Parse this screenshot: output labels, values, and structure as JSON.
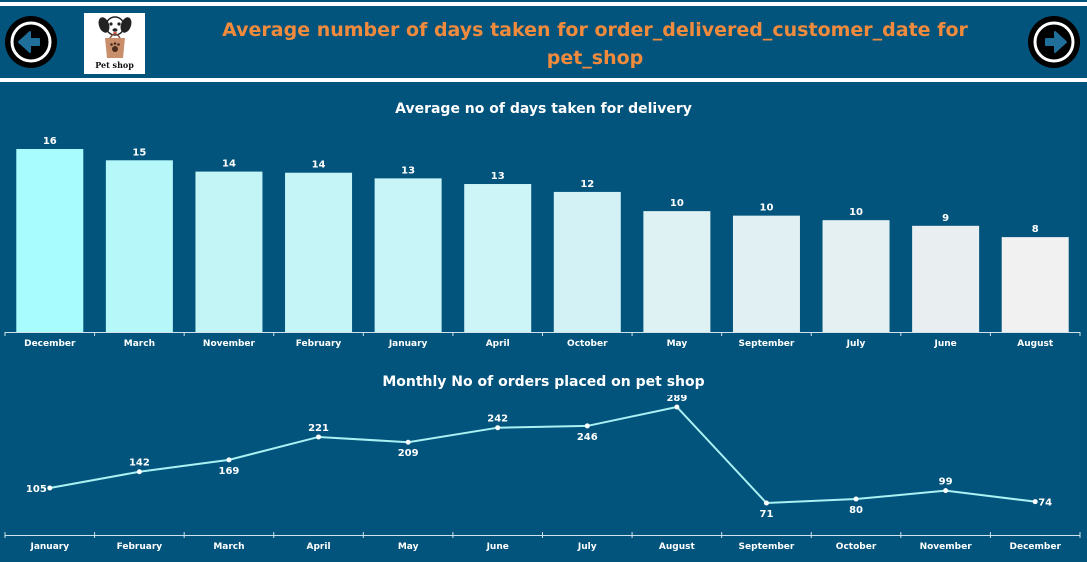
{
  "header": {
    "title": "Average number of days taken for order_delivered_customer_date for pet_shop",
    "logo_label": "Pet shop",
    "back_icon": "arrow-left-icon",
    "forward_icon": "arrow-right-icon"
  },
  "colors": {
    "background": "#03547c",
    "title": "#f08a3c",
    "line": "#a9f1f3"
  },
  "chart_data": [
    {
      "type": "bar",
      "title": "Average no of days taken for delivery",
      "categories": [
        "December",
        "March",
        "November",
        "February",
        "January",
        "April",
        "October",
        "May",
        "September",
        "July",
        "June",
        "August"
      ],
      "values": [
        16,
        15,
        14,
        14,
        13,
        13,
        12,
        10,
        10,
        10,
        9,
        8
      ],
      "plot_values": [
        16.2,
        15.2,
        14.2,
        14.1,
        13.6,
        13.1,
        12.4,
        10.7,
        10.3,
        9.9,
        9.4,
        8.4
      ],
      "colors": [
        "#a8fcfd",
        "#b6f8f9",
        "#c3f5f7",
        "#c5f5f7",
        "#c8f5f7",
        "#cdf4f6",
        "#d2f2f5",
        "#def1f3",
        "#e1f1f3",
        "#e4f0f2",
        "#e9eef1",
        "#f1f1f1"
      ],
      "xlabel": "",
      "ylabel": "",
      "ylim": [
        0,
        16.2
      ]
    },
    {
      "type": "line",
      "title": "Monthly No of orders placed on pet shop",
      "categories": [
        "January",
        "February",
        "March",
        "April",
        "May",
        "June",
        "July",
        "August",
        "September",
        "October",
        "November",
        "December"
      ],
      "values": [
        105,
        142,
        169,
        221,
        209,
        242,
        246,
        289,
        71,
        80,
        99,
        74
      ],
      "label_positions": [
        "left",
        "above",
        "below",
        "above",
        "below",
        "above",
        "below",
        "above",
        "below",
        "below",
        "above",
        "right"
      ],
      "xlabel": "",
      "ylabel": "",
      "ylim": [
        0,
        300
      ]
    }
  ]
}
